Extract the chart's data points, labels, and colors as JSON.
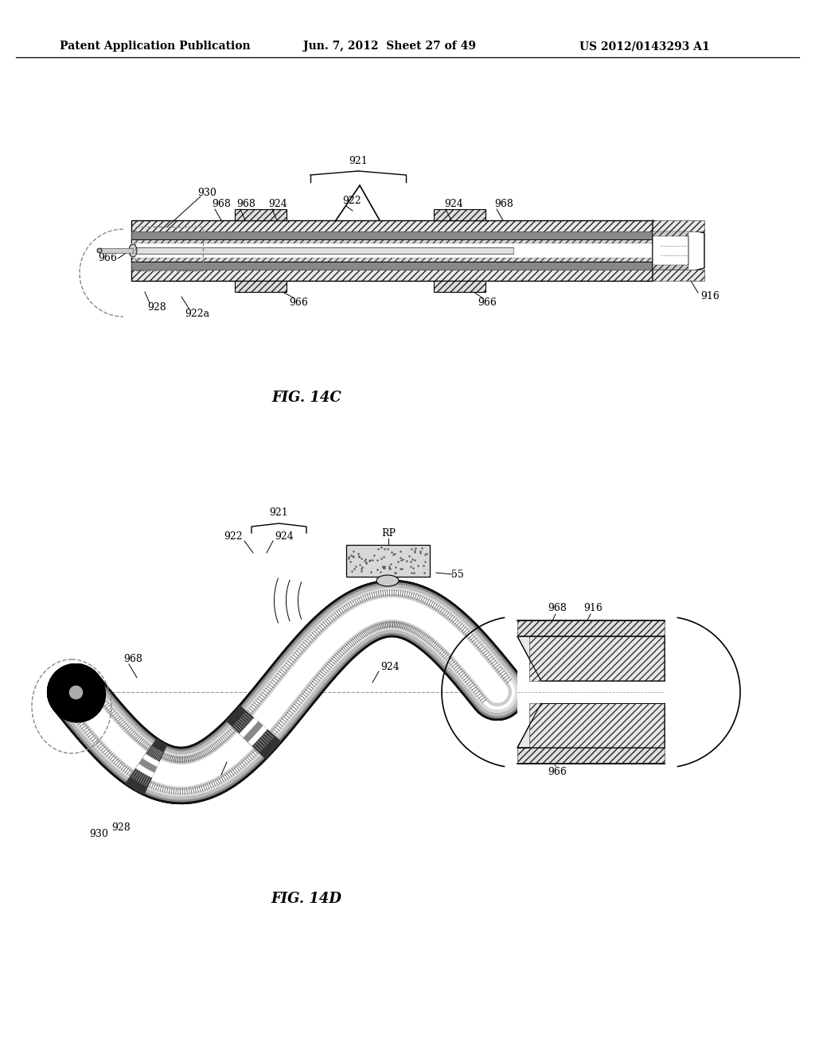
{
  "bg_color": "#ffffff",
  "header_left": "Patent Application Publication",
  "header_mid": "Jun. 7, 2012  Sheet 27 of 49",
  "header_right": "US 2012/0143293 A1",
  "fig14c_label": "FIG. 14C",
  "fig14d_label": "FIG. 14D",
  "font_color": "#000000"
}
